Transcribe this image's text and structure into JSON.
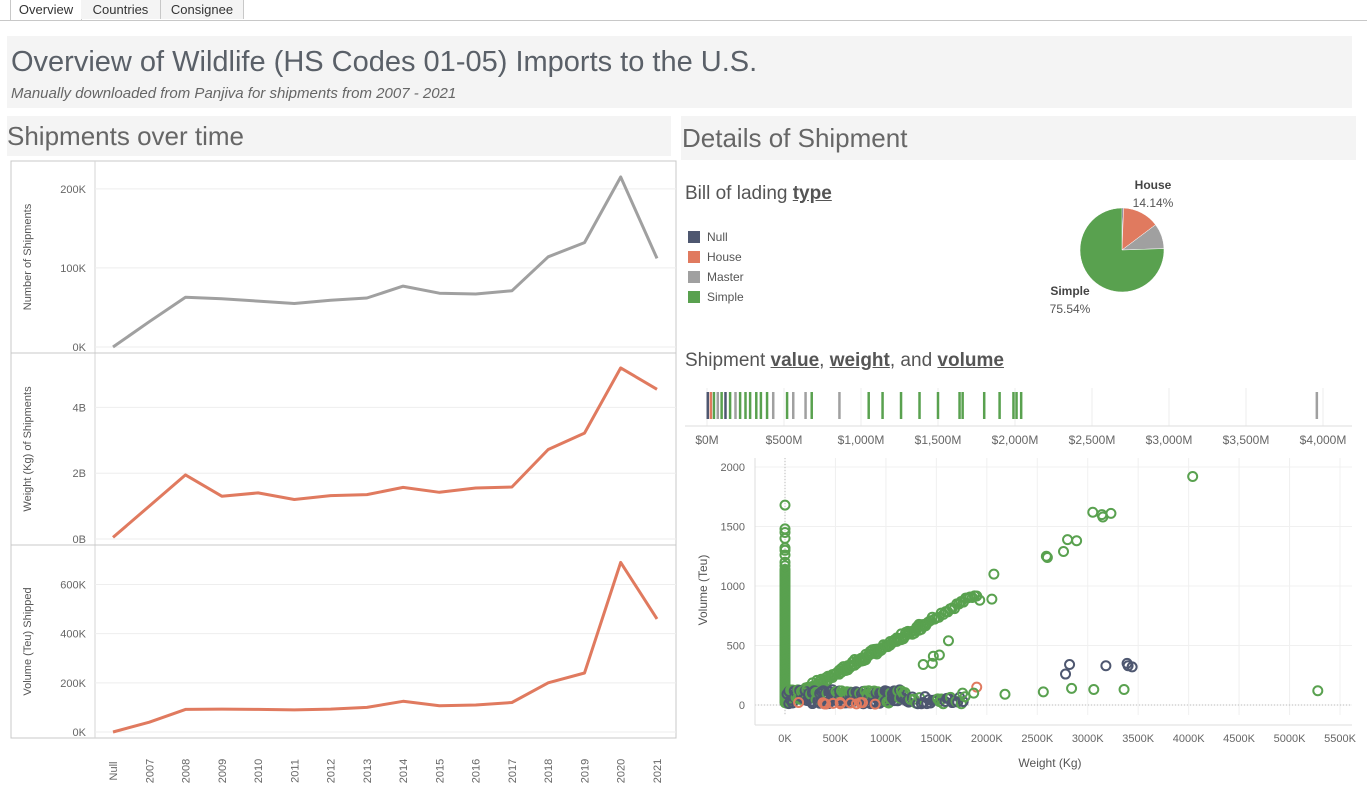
{
  "tabs": [
    {
      "label": "Overview",
      "active": true
    },
    {
      "label": "Countries",
      "active": false
    },
    {
      "label": "Consignee",
      "active": false
    }
  ],
  "header": {
    "title": "Overview of Wildlife (HS Codes 01-05) Imports to the U.S.",
    "subtitle": "Manually downloaded from Panjiva for shipments from 2007 - 2021"
  },
  "left_section": {
    "title": "Shipments over time"
  },
  "right_section": {
    "title": "Details of Shipment",
    "bol_title_prefix": "Bill of lading ",
    "bol_title_link": "type",
    "svw_prefix": "Shipment ",
    "svw_link1": "value",
    "svw_sep1": ", ",
    "svw_link2": "weight",
    "svw_sep2": ", and ",
    "svw_link3": "volume"
  },
  "colors": {
    "null": "#4e5770",
    "house": "#e07a5f",
    "master": "#a0a0a0",
    "simple": "#59a14f",
    "line_gray": "#a0a0a0",
    "line_orange": "#e07a5f"
  },
  "legend": [
    {
      "label": "Null",
      "color": "#4e5770"
    },
    {
      "label": "House",
      "color": "#e07a5f"
    },
    {
      "label": "Master",
      "color": "#a0a0a0"
    },
    {
      "label": "Simple",
      "color": "#59a14f"
    }
  ],
  "chart_data": [
    {
      "type": "line",
      "ylabel": "Number of Shipments",
      "categories": [
        "Null",
        "2007",
        "2008",
        "2009",
        "2010",
        "2011",
        "2012",
        "2013",
        "2014",
        "2015",
        "2016",
        "2017",
        "2018",
        "2019",
        "2020",
        "2021"
      ],
      "values": [
        0,
        32000,
        63000,
        61000,
        58000,
        55000,
        59000,
        62000,
        77000,
        68000,
        67000,
        71000,
        114000,
        132000,
        215000,
        112000
      ],
      "yticks": [
        "0K",
        "100K",
        "200K"
      ],
      "ylim": [
        0,
        220000
      ],
      "color": "#a0a0a0"
    },
    {
      "type": "line",
      "ylabel": "Weight (Kg) of Shipments",
      "categories": [
        "Null",
        "2007",
        "2008",
        "2009",
        "2010",
        "2011",
        "2012",
        "2013",
        "2014",
        "2015",
        "2016",
        "2017",
        "2018",
        "2019",
        "2020",
        "2021"
      ],
      "values": [
        0.05,
        1.0,
        1.95,
        1.3,
        1.4,
        1.2,
        1.32,
        1.35,
        1.57,
        1.42,
        1.55,
        1.58,
        2.72,
        3.22,
        5.2,
        4.55
      ],
      "yticks": [
        "0B",
        "2B",
        "4B"
      ],
      "ylim": [
        0,
        5.35
      ],
      "color": "#e07a5f"
    },
    {
      "type": "line",
      "ylabel": "Volume (Teu) Shipped",
      "categories": [
        "Null",
        "2007",
        "2008",
        "2009",
        "2010",
        "2011",
        "2012",
        "2013",
        "2014",
        "2015",
        "2016",
        "2017",
        "2018",
        "2019",
        "2020",
        "2021"
      ],
      "values": [
        0,
        40000,
        92000,
        93000,
        92000,
        90000,
        93000,
        100000,
        125000,
        107000,
        110000,
        120000,
        200000,
        240000,
        690000,
        460000
      ],
      "yticks": [
        "0K",
        "200K",
        "400K",
        "600K"
      ],
      "ylim": [
        0,
        720000
      ],
      "color": "#e07a5f",
      "xaxis_labels": true
    },
    {
      "type": "pie",
      "slices": [
        {
          "label": "Null",
          "percent": 0.6,
          "color": "#4e5770"
        },
        {
          "label": "House",
          "percent": 14.14,
          "color": "#e07a5f"
        },
        {
          "label": "Master",
          "percent": 9.72,
          "color": "#a0a0a0"
        },
        {
          "label": "Simple",
          "percent": 75.54,
          "color": "#59a14f"
        }
      ],
      "labels": [
        {
          "name": "House",
          "value": "14.14%"
        },
        {
          "name": "Simple",
          "value": "75.54%"
        }
      ]
    },
    {
      "type": "strip",
      "xticks": [
        "$0M",
        "$500M",
        "$1,000M",
        "$1,500M",
        "$2,000M",
        "$2,500M",
        "$3,000M",
        "$3,500M",
        "$4,000M"
      ],
      "xlim": [
        0,
        4000
      ],
      "marks": [
        {
          "v": 5,
          "c": "#4e5770"
        },
        {
          "v": 25,
          "c": "#e07a5f"
        },
        {
          "v": 45,
          "c": "#59a14f"
        },
        {
          "v": 70,
          "c": "#a0a0a0"
        },
        {
          "v": 95,
          "c": "#59a14f"
        },
        {
          "v": 120,
          "c": "#4e5770"
        },
        {
          "v": 150,
          "c": "#59a14f"
        },
        {
          "v": 185,
          "c": "#a0a0a0"
        },
        {
          "v": 215,
          "c": "#59a14f"
        },
        {
          "v": 250,
          "c": "#59a14f"
        },
        {
          "v": 280,
          "c": "#59a14f"
        },
        {
          "v": 320,
          "c": "#59a14f"
        },
        {
          "v": 350,
          "c": "#59a14f"
        },
        {
          "v": 390,
          "c": "#59a14f"
        },
        {
          "v": 430,
          "c": "#a0a0a0"
        },
        {
          "v": 520,
          "c": "#59a14f"
        },
        {
          "v": 560,
          "c": "#a0a0a0"
        },
        {
          "v": 640,
          "c": "#a0a0a0"
        },
        {
          "v": 680,
          "c": "#59a14f"
        },
        {
          "v": 860,
          "c": "#a0a0a0"
        },
        {
          "v": 1050,
          "c": "#59a14f"
        },
        {
          "v": 1140,
          "c": "#59a14f"
        },
        {
          "v": 1260,
          "c": "#59a14f"
        },
        {
          "v": 1380,
          "c": "#59a14f"
        },
        {
          "v": 1500,
          "c": "#59a14f"
        },
        {
          "v": 1640,
          "c": "#59a14f"
        },
        {
          "v": 1660,
          "c": "#59a14f"
        },
        {
          "v": 1800,
          "c": "#59a14f"
        },
        {
          "v": 1900,
          "c": "#59a14f"
        },
        {
          "v": 1990,
          "c": "#59a14f"
        },
        {
          "v": 2010,
          "c": "#59a14f"
        },
        {
          "v": 2040,
          "c": "#59a14f"
        },
        {
          "v": 3960,
          "c": "#a0a0a0"
        }
      ]
    },
    {
      "type": "scatter",
      "xlabel": "Weight (Kg)",
      "ylabel": "Volume (Teu)",
      "xticks": [
        "0K",
        "500K",
        "1000K",
        "1500K",
        "2000K",
        "2500K",
        "3000K",
        "3500K",
        "4000K",
        "4500K",
        "5000K",
        "5500K"
      ],
      "yticks": [
        "0",
        "500",
        "1000",
        "1500",
        "2000"
      ],
      "xlim": [
        0,
        5500
      ],
      "ylim": [
        0,
        2000
      ],
      "outliers": [
        {
          "x": 4040,
          "y": 1920,
          "c": "#59a14f"
        },
        {
          "x": 3050,
          "y": 1620,
          "c": "#59a14f"
        },
        {
          "x": 3140,
          "y": 1600,
          "c": "#59a14f"
        },
        {
          "x": 3230,
          "y": 1610,
          "c": "#59a14f"
        },
        {
          "x": 3150,
          "y": 1580,
          "c": "#59a14f"
        },
        {
          "x": 2800,
          "y": 1390,
          "c": "#59a14f"
        },
        {
          "x": 2890,
          "y": 1380,
          "c": "#59a14f"
        },
        {
          "x": 2760,
          "y": 1290,
          "c": "#59a14f"
        },
        {
          "x": 2590,
          "y": 1250,
          "c": "#59a14f"
        },
        {
          "x": 2600,
          "y": 1240,
          "c": "#59a14f"
        },
        {
          "x": 2070,
          "y": 1100,
          "c": "#59a14f"
        },
        {
          "x": 2050,
          "y": 890,
          "c": "#59a14f"
        },
        {
          "x": 1930,
          "y": 880,
          "c": "#59a14f"
        },
        {
          "x": 1620,
          "y": 540,
          "c": "#59a14f"
        },
        {
          "x": 1470,
          "y": 410,
          "c": "#59a14f"
        },
        {
          "x": 1370,
          "y": 340,
          "c": "#59a14f"
        },
        {
          "x": 1460,
          "y": 350,
          "c": "#59a14f"
        },
        {
          "x": 1530,
          "y": 420,
          "c": "#59a14f"
        },
        {
          "x": 2780,
          "y": 260,
          "c": "#4e5770"
        },
        {
          "x": 2820,
          "y": 340,
          "c": "#4e5770"
        },
        {
          "x": 3180,
          "y": 330,
          "c": "#4e5770"
        },
        {
          "x": 3390,
          "y": 350,
          "c": "#4e5770"
        },
        {
          "x": 3440,
          "y": 320,
          "c": "#4e5770"
        },
        {
          "x": 3400,
          "y": 330,
          "c": "#4e5770"
        },
        {
          "x": 5280,
          "y": 120,
          "c": "#59a14f"
        },
        {
          "x": 3360,
          "y": 130,
          "c": "#59a14f"
        },
        {
          "x": 3060,
          "y": 130,
          "c": "#59a14f"
        },
        {
          "x": 2840,
          "y": 140,
          "c": "#59a14f"
        },
        {
          "x": 2560,
          "y": 110,
          "c": "#59a14f"
        },
        {
          "x": 2180,
          "y": 90,
          "c": "#59a14f"
        },
        {
          "x": 1900,
          "y": 150,
          "c": "#e07a5f"
        },
        {
          "x": 1870,
          "y": 100,
          "c": "#59a14f"
        },
        {
          "x": 1760,
          "y": 100,
          "c": "#59a14f"
        }
      ]
    }
  ]
}
